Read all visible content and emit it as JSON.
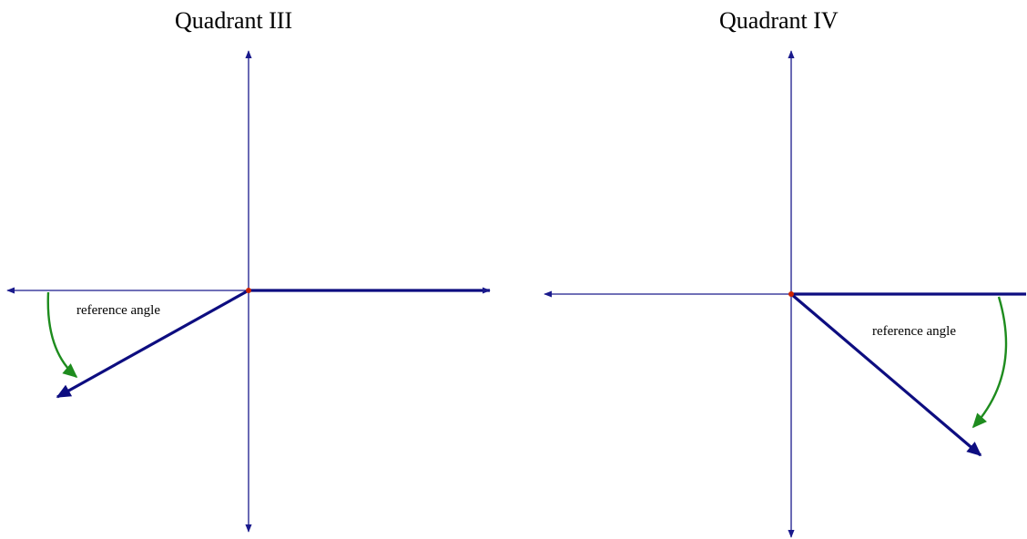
{
  "panels": [
    {
      "title": "Quadrant III",
      "label": "reference angle"
    },
    {
      "title": "Quadrant IV",
      "label": "reference angle"
    }
  ],
  "colors": {
    "axis": "#1a1a8c",
    "terminal": "#0d0d80",
    "arc": "#1e8c1e",
    "origin": "#cc2200",
    "text": "#000000"
  }
}
